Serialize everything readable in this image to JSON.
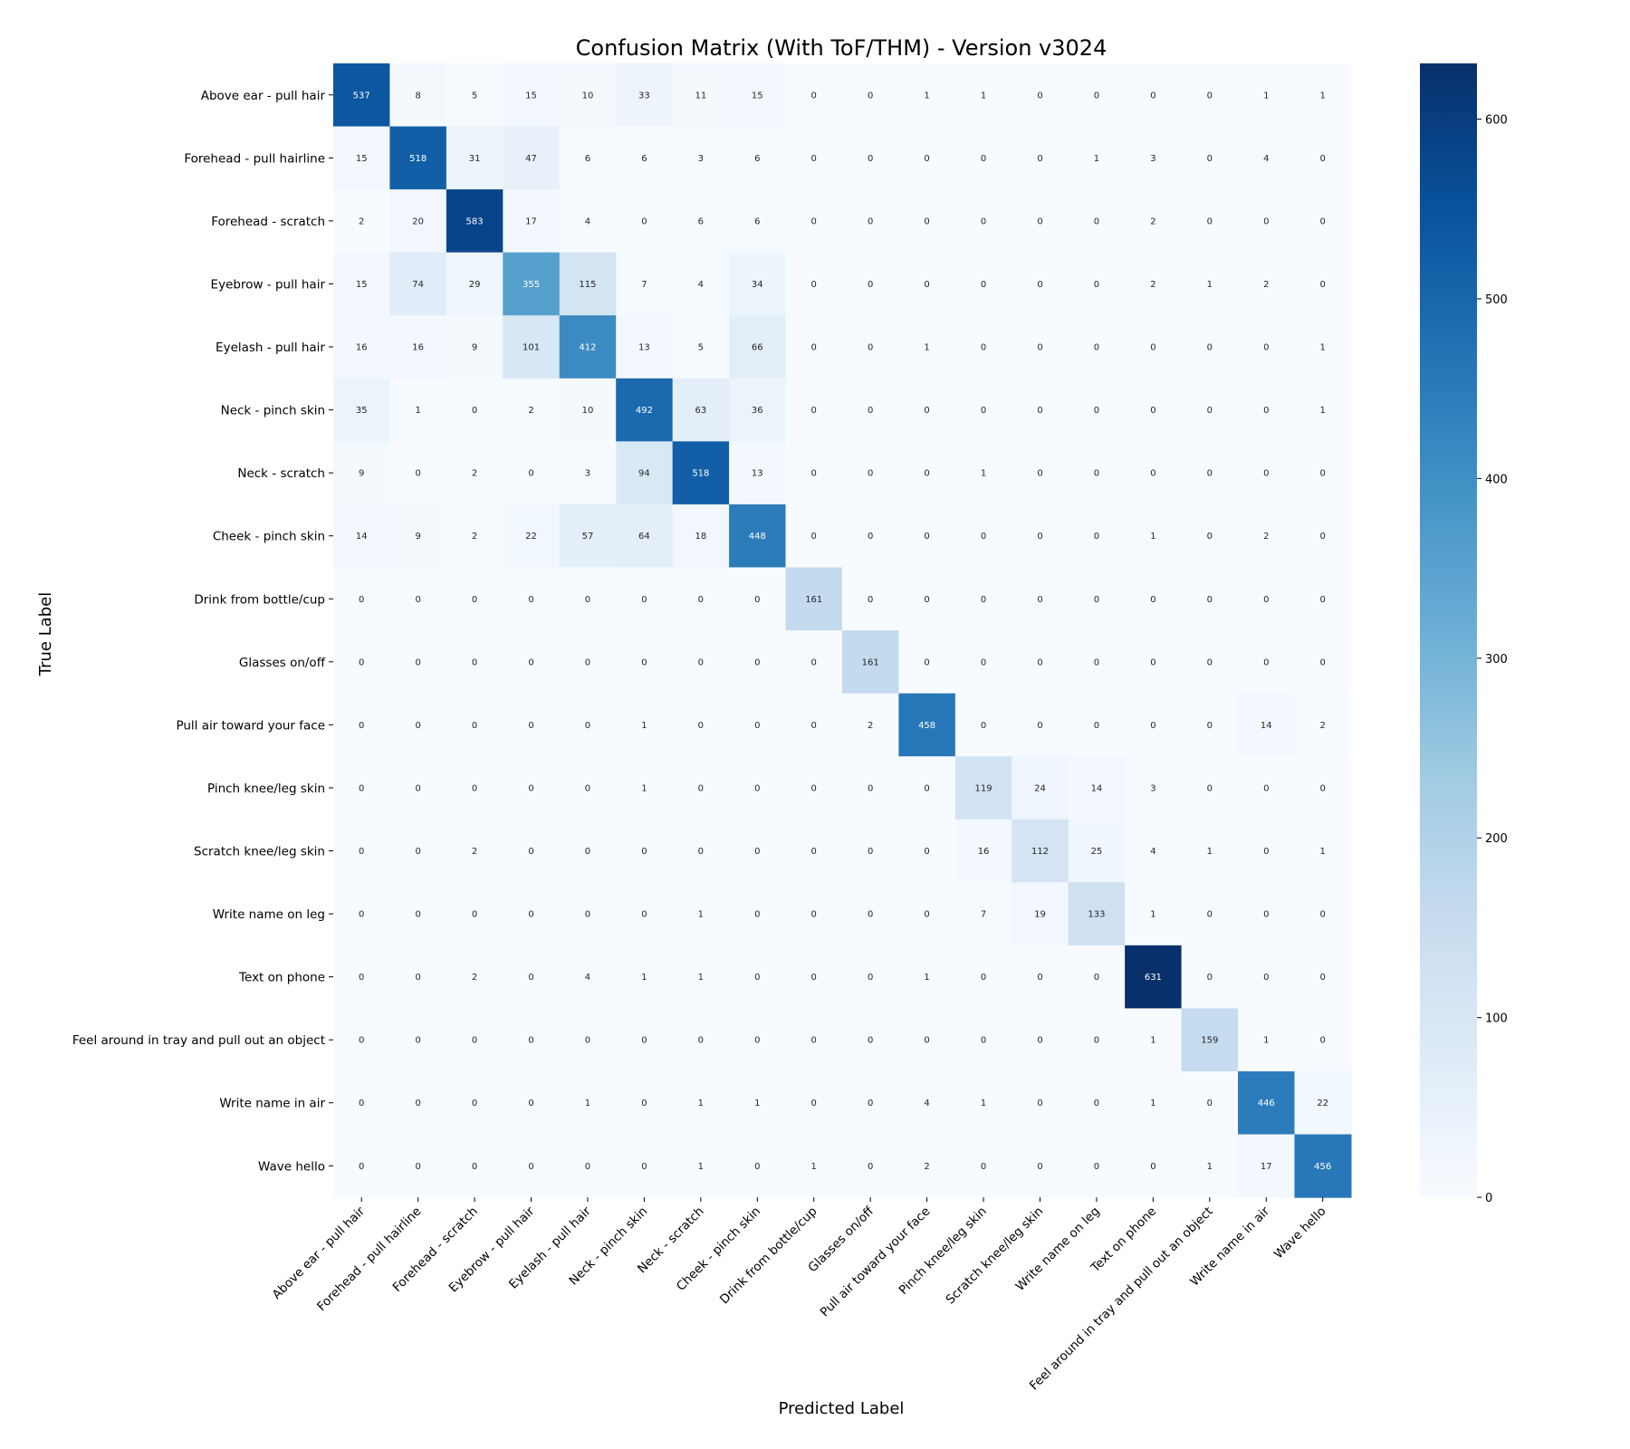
{
  "chart_data": {
    "type": "heatmap",
    "title": "Confusion Matrix (With ToF/THM) - Version v3024",
    "xlabel": "Predicted Label",
    "ylabel": "True Label",
    "labels": [
      "Above ear - pull hair",
      "Forehead - pull hairline",
      "Forehead - scratch",
      "Eyebrow - pull hair",
      "Eyelash - pull hair",
      "Neck - pinch skin",
      "Neck - scratch",
      "Cheek - pinch skin",
      "Drink from bottle/cup",
      "Glasses on/off",
      "Pull air toward your face",
      "Pinch knee/leg skin",
      "Scratch knee/leg skin",
      "Write name on leg",
      "Text on phone",
      "Feel around in tray and pull out an object",
      "Write name in air",
      "Wave hello"
    ],
    "matrix": [
      [
        537,
        8,
        5,
        15,
        10,
        33,
        11,
        15,
        0,
        0,
        1,
        1,
        0,
        0,
        0,
        0,
        1,
        1
      ],
      [
        15,
        518,
        31,
        47,
        6,
        6,
        3,
        6,
        0,
        0,
        0,
        0,
        0,
        1,
        3,
        0,
        4,
        0
      ],
      [
        2,
        20,
        583,
        17,
        4,
        0,
        6,
        6,
        0,
        0,
        0,
        0,
        0,
        0,
        2,
        0,
        0,
        0
      ],
      [
        15,
        74,
        29,
        355,
        115,
        7,
        4,
        34,
        0,
        0,
        0,
        0,
        0,
        0,
        2,
        1,
        2,
        0
      ],
      [
        16,
        16,
        9,
        101,
        412,
        13,
        5,
        66,
        0,
        0,
        1,
        0,
        0,
        0,
        0,
        0,
        0,
        1
      ],
      [
        35,
        1,
        0,
        2,
        10,
        492,
        63,
        36,
        0,
        0,
        0,
        0,
        0,
        0,
        0,
        0,
        0,
        1
      ],
      [
        9,
        0,
        2,
        0,
        3,
        94,
        518,
        13,
        0,
        0,
        0,
        1,
        0,
        0,
        0,
        0,
        0,
        0
      ],
      [
        14,
        9,
        2,
        22,
        57,
        64,
        18,
        448,
        0,
        0,
        0,
        0,
        0,
        0,
        1,
        0,
        2,
        0
      ],
      [
        0,
        0,
        0,
        0,
        0,
        0,
        0,
        0,
        161,
        0,
        0,
        0,
        0,
        0,
        0,
        0,
        0,
        0
      ],
      [
        0,
        0,
        0,
        0,
        0,
        0,
        0,
        0,
        0,
        161,
        0,
        0,
        0,
        0,
        0,
        0,
        0,
        0
      ],
      [
        0,
        0,
        0,
        0,
        0,
        1,
        0,
        0,
        0,
        2,
        458,
        0,
        0,
        0,
        0,
        0,
        14,
        2
      ],
      [
        0,
        0,
        0,
        0,
        0,
        1,
        0,
        0,
        0,
        0,
        0,
        119,
        24,
        14,
        3,
        0,
        0,
        0
      ],
      [
        0,
        0,
        2,
        0,
        0,
        0,
        0,
        0,
        0,
        0,
        0,
        16,
        112,
        25,
        4,
        1,
        0,
        1
      ],
      [
        0,
        0,
        0,
        0,
        0,
        0,
        1,
        0,
        0,
        0,
        0,
        7,
        19,
        133,
        1,
        0,
        0,
        0
      ],
      [
        0,
        0,
        2,
        0,
        4,
        1,
        1,
        0,
        0,
        0,
        1,
        0,
        0,
        0,
        631,
        0,
        0,
        0
      ],
      [
        0,
        0,
        0,
        0,
        0,
        0,
        0,
        0,
        0,
        0,
        0,
        0,
        0,
        0,
        1,
        159,
        1,
        0
      ],
      [
        0,
        0,
        0,
        0,
        1,
        0,
        1,
        1,
        0,
        0,
        4,
        1,
        0,
        0,
        1,
        0,
        446,
        22
      ],
      [
        0,
        0,
        0,
        0,
        0,
        0,
        1,
        0,
        1,
        0,
        2,
        0,
        0,
        0,
        0,
        1,
        17,
        456
      ]
    ],
    "colormap": "Blues",
    "vmin": 0,
    "vmax": 631,
    "colorbar_ticks": [
      0,
      100,
      200,
      300,
      400,
      500,
      600
    ],
    "grid": false,
    "annotations": true
  }
}
